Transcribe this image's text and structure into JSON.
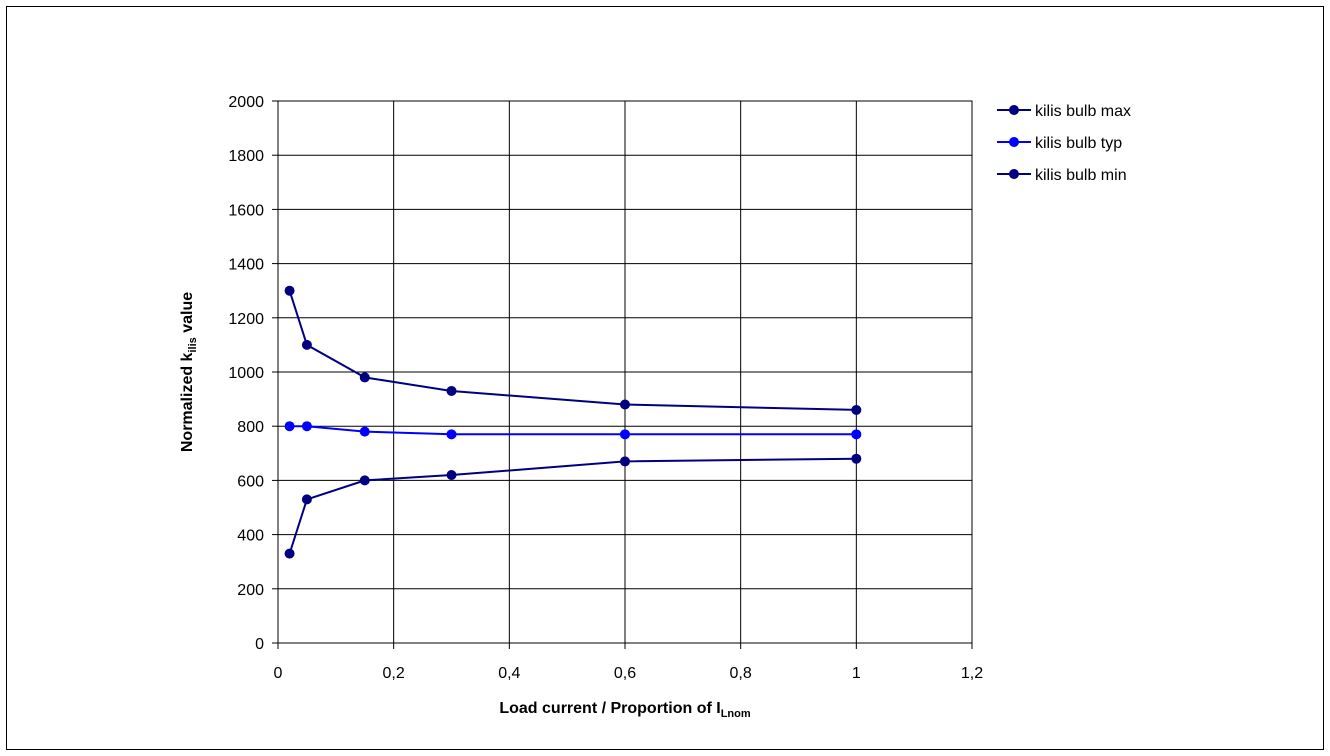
{
  "chart_data": {
    "type": "line",
    "title": "",
    "xlabel": {
      "main": "Load current / Proportion of I",
      "subscript": "Lnom"
    },
    "ylabel": {
      "prefix": "Normalized k",
      "subscript": "ilis",
      "suffix": " value"
    },
    "xlim": [
      0,
      1.2
    ],
    "ylim": [
      0,
      2000
    ],
    "xticks": [
      0,
      0.2,
      0.4,
      0.6,
      0.8,
      1,
      1.2
    ],
    "xtick_labels": [
      "0",
      "0,2",
      "0,4",
      "0,6",
      "0,8",
      "1",
      "1,2"
    ],
    "yticks": [
      0,
      200,
      400,
      600,
      800,
      1000,
      1200,
      1400,
      1600,
      1800,
      2000
    ],
    "ytick_labels": [
      "0",
      "200",
      "400",
      "600",
      "800",
      "1000",
      "1200",
      "1400",
      "1600",
      "1800",
      "2000"
    ],
    "grid": true,
    "legend_position": "right",
    "x": [
      0.02,
      0.05,
      0.15,
      0.3,
      0.6,
      1
    ],
    "series": [
      {
        "name": "kilis bulb max",
        "color": "#000080",
        "values": [
          1300,
          1100,
          980,
          930,
          880,
          860
        ]
      },
      {
        "name": "kilis bulb typ",
        "color": "#0000ff",
        "values": [
          800,
          800,
          780,
          770,
          770,
          770
        ]
      },
      {
        "name": "kilis bulb min",
        "color": "#000080",
        "values": [
          330,
          530,
          600,
          620,
          670,
          680
        ]
      }
    ]
  }
}
